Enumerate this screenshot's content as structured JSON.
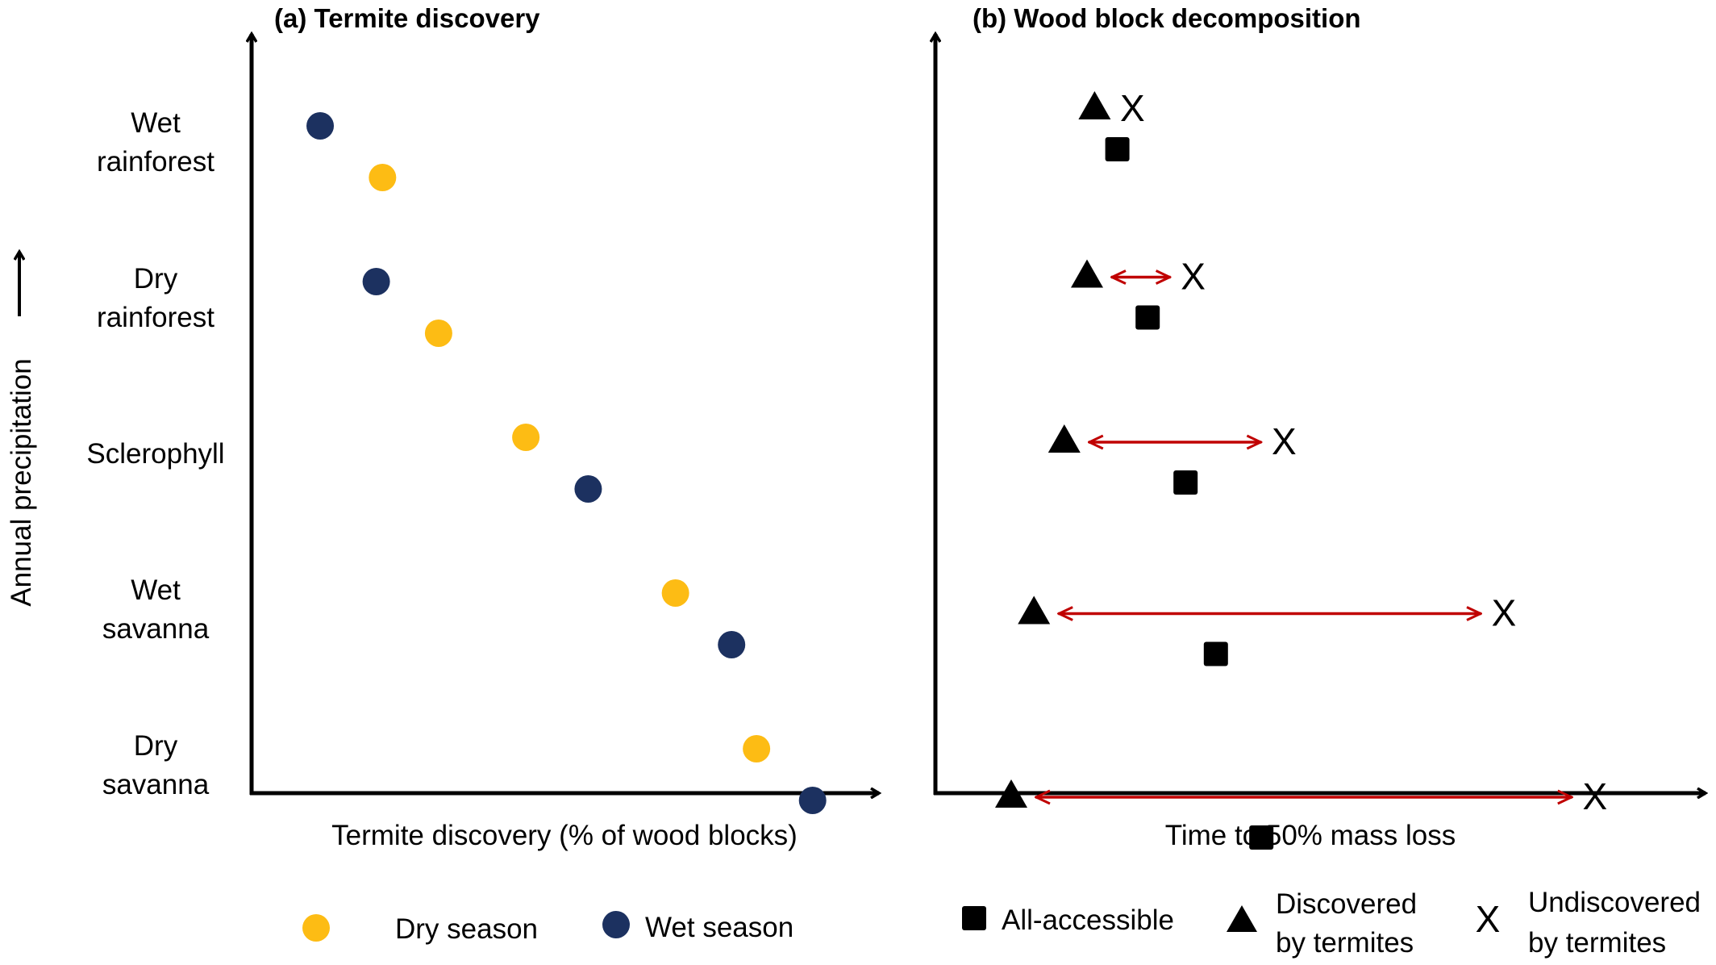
{
  "chart_data": [
    {
      "type": "scatter",
      "title": "(a) Termite discovery",
      "xlabel": "Termite discovery (% of wood blocks)",
      "ylabel": "Annual precipitation",
      "categories": [
        "Wet rainforest",
        "Dry rainforest",
        "Sclerophyll",
        "Wet savanna",
        "Dry savanna"
      ],
      "category_labels": [
        [
          "Wet",
          "rainforest"
        ],
        [
          "Dry",
          "rainforest"
        ],
        [
          "Sclerophyll"
        ],
        [
          "Wet",
          "savanna"
        ],
        [
          "Dry",
          "savanna"
        ]
      ],
      "xlim": [
        0,
        100
      ],
      "grid": false,
      "legend_position": "bottom",
      "series": [
        {
          "name": "Dry season",
          "color": "#fdbc14",
          "values": [
            21,
            30,
            44,
            68,
            81
          ]
        },
        {
          "name": "Wet season",
          "color": "#1c3160",
          "values": [
            11,
            20,
            54,
            77,
            90
          ]
        }
      ]
    },
    {
      "type": "scatter",
      "title": "(b) Wood block decomposition",
      "xlabel": "Time to 50% mass loss",
      "categories": [
        "Wet rainforest",
        "Dry rainforest",
        "Sclerophyll",
        "Wet savanna",
        "Dry savanna"
      ],
      "xlim": [
        0,
        100
      ],
      "grid": false,
      "legend_position": "bottom",
      "arrow_color": "#c00000",
      "series": [
        {
          "name": "All-accessible",
          "marker": "square",
          "values": [
            24,
            28,
            33,
            37,
            43
          ]
        },
        {
          "name": "Discovered by termites",
          "marker": "triangle",
          "values": [
            21,
            20,
            17,
            13,
            10
          ]
        },
        {
          "name": "Undiscovered by termites",
          "marker": "x",
          "values": [
            26,
            34,
            46,
            75,
            87
          ]
        }
      ]
    }
  ],
  "legend_a": {
    "dry": "Dry season",
    "wet": "Wet season"
  },
  "legend_b": {
    "all": "All-accessible",
    "disc_1": "Discovered",
    "disc_2": "by termites",
    "undisc_1": "Undiscovered",
    "undisc_2": "by termites",
    "x_symbol": "X"
  }
}
